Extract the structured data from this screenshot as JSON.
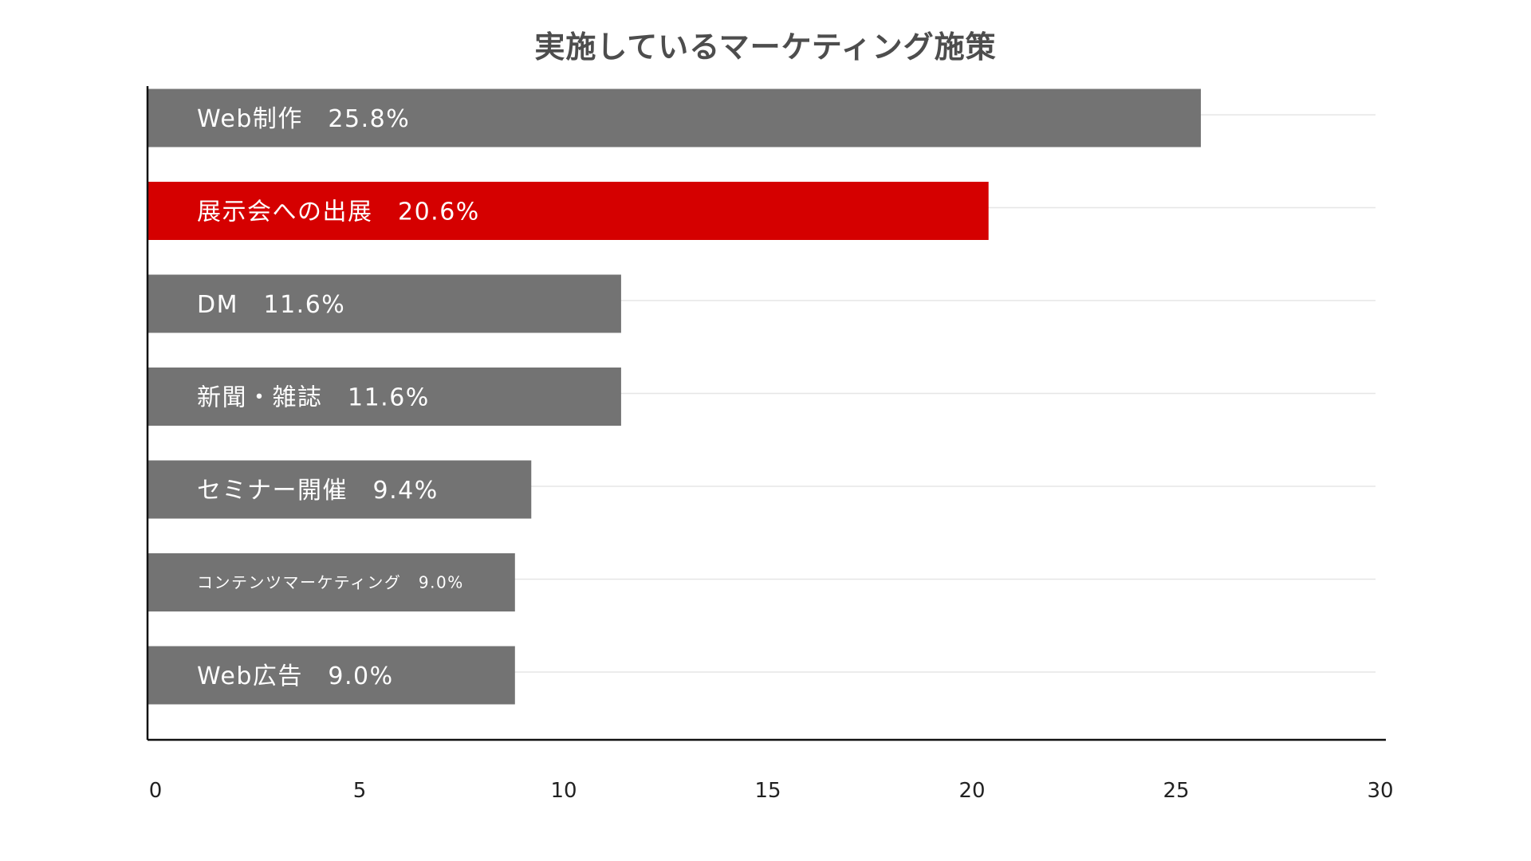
{
  "chart_data": {
    "type": "bar",
    "orientation": "horizontal",
    "title": "実施しているマーケティング施策",
    "xlim": [
      0,
      30
    ],
    "x_ticks": [
      0,
      5,
      10,
      15,
      20,
      25,
      30
    ],
    "grid": true,
    "categories": [
      "Web制作",
      "展示会への出展",
      "DM",
      "新聞・雑誌",
      "セミナー開催",
      "コンテンツマーケティング",
      "Web広告"
    ],
    "values": [
      25.8,
      20.6,
      11.6,
      11.6,
      9.4,
      9.0,
      9.0
    ],
    "bar_labels": [
      "Web制作　25.8%",
      "展示会への出展　20.6%",
      "DM　11.6%",
      "新聞・雑誌　11.6%",
      "セミナー開催　9.4%",
      "コンテンツマーケティング　9.0%",
      "Web広告　9.0%"
    ],
    "highlight_index": 1,
    "colors": {
      "default_bar": "#737373",
      "highlight_bar": "#d50000",
      "axis": "#111111",
      "grid": "#e6e6e6",
      "title": "#4d4d4d",
      "label": "#ffffff"
    }
  }
}
